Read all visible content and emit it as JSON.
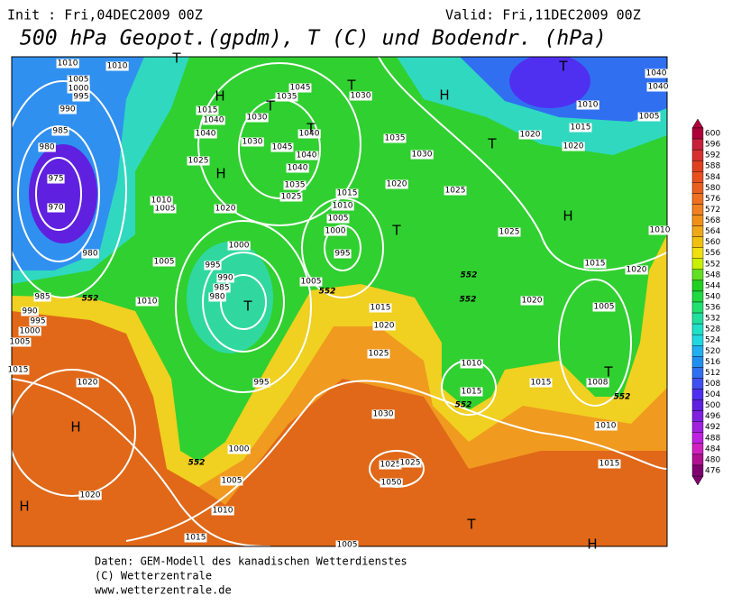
{
  "header": {
    "init": "Init : Fri,04DEC2009 00Z",
    "valid": "Valid: Fri,11DEC2009 00Z",
    "title": "500 hPa Geopot.(gpdm), T (C) und Bodendr. (hPa)"
  },
  "isobar_labels": [
    1010,
    1010,
    1005,
    1000,
    995,
    990,
    985,
    980,
    975,
    970,
    980,
    985,
    990,
    995,
    1000,
    1005,
    1015,
    1020,
    1020,
    1015,
    1010,
    1005,
    1000,
    995,
    980,
    985,
    990,
    995,
    1000,
    1005,
    1010,
    1005,
    1010,
    1020,
    1015,
    1040,
    1040,
    1025,
    1030,
    1035,
    1045,
    1030,
    1045,
    1040,
    1040,
    1040,
    1035,
    1025,
    1015,
    1010,
    1005,
    1000,
    995,
    1005,
    1015,
    1020,
    1025,
    1030,
    1025,
    1025,
    1050,
    1030,
    1035,
    1030,
    1020,
    1025,
    1025,
    1020,
    1010,
    1015,
    1015,
    1010,
    1015,
    1005,
    1020,
    1015,
    1008,
    1020,
    1020,
    1015,
    1010,
    1005,
    1040,
    1040,
    1010,
    1005
  ],
  "temperature_labels": [
    552,
    552,
    552,
    552,
    552,
    552,
    552
  ],
  "pressure_centers": [
    "T",
    "T",
    "T",
    "H",
    "H",
    "T",
    "T",
    "T",
    "H",
    "T",
    "T",
    "H",
    "T",
    "H",
    "H",
    "T",
    "H"
  ],
  "scale": {
    "values": [
      600,
      596,
      592,
      588,
      584,
      580,
      576,
      572,
      568,
      564,
      560,
      556,
      552,
      548,
      544,
      540,
      536,
      532,
      528,
      524,
      520,
      516,
      512,
      508,
      504,
      500,
      496,
      492,
      488,
      484,
      480,
      476
    ],
    "colors": [
      "#b0003c",
      "#c8203c",
      "#d83030",
      "#e04020",
      "#e85020",
      "#e86020",
      "#f07020",
      "#f08020",
      "#f09018",
      "#f0a818",
      "#f0c010",
      "#f0e010",
      "#c8f000",
      "#60e020",
      "#20d020",
      "#20d840",
      "#20e070",
      "#20e0a0",
      "#20e0c8",
      "#20d8e0",
      "#20b0f0",
      "#2090f0",
      "#3070f0",
      "#4050f0",
      "#5030f0",
      "#6020e0",
      "#8020e0",
      "#a020e0",
      "#c020e0",
      "#d020c0",
      "#b01090",
      "#800070"
    ]
  },
  "footer": [
    "Daten: GEM-Modell des kanadischen Wetterdienstes",
    "(C) Wetterzentrale",
    "www.wetterzentrale.de"
  ]
}
